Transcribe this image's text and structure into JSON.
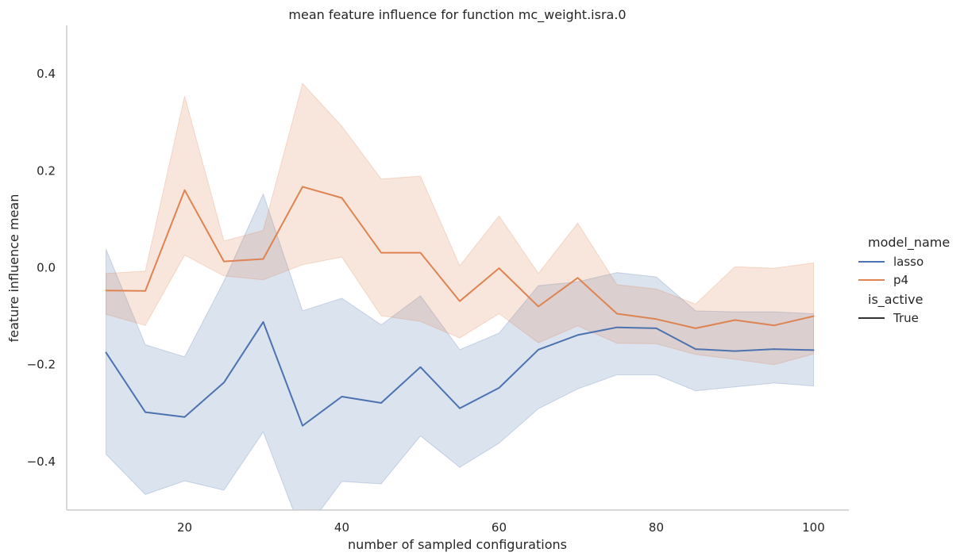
{
  "chart_data": {
    "type": "line",
    "title": "mean feature influence for function mc_weight.isra.0",
    "xlabel": "number of sampled configurations",
    "ylabel": "feature influence mean",
    "xlim": [
      5,
      104.5
    ],
    "ylim": [
      -0.5,
      0.5
    ],
    "xticks": [
      20,
      40,
      60,
      80,
      100
    ],
    "yticks": [
      -0.4,
      -0.2,
      0.0,
      0.2,
      0.4
    ],
    "ytick_labels": [
      "−0.4",
      "−0.2",
      "0.0",
      "0.2",
      "0.4"
    ],
    "grid": false,
    "x": [
      10,
      15,
      20,
      25,
      30,
      35,
      40,
      45,
      50,
      55,
      60,
      65,
      70,
      75,
      80,
      85,
      90,
      95,
      100
    ],
    "series": [
      {
        "name": "lasso",
        "color": "#4c72b0",
        "values": [
          -0.175,
          -0.298,
          -0.308,
          -0.237,
          -0.112,
          -0.326,
          -0.266,
          -0.279,
          -0.205,
          -0.29,
          -0.248,
          -0.169,
          -0.139,
          -0.123,
          -0.125,
          -0.168,
          -0.172,
          -0.168,
          -0.17
        ],
        "ci_upper": [
          0.038,
          -0.159,
          -0.184,
          -0.028,
          0.152,
          -0.089,
          -0.063,
          -0.118,
          -0.058,
          -0.169,
          -0.135,
          -0.037,
          -0.029,
          -0.01,
          -0.019,
          -0.089,
          -0.091,
          -0.091,
          -0.095
        ],
        "ci_lower": [
          -0.385,
          -0.468,
          -0.44,
          -0.459,
          -0.339,
          -0.55,
          -0.441,
          -0.446,
          -0.347,
          -0.412,
          -0.362,
          -0.291,
          -0.25,
          -0.221,
          -0.221,
          -0.254,
          -0.246,
          -0.238,
          -0.244
        ]
      },
      {
        "name": "p4",
        "color": "#dd8452",
        "values": [
          -0.047,
          -0.048,
          0.16,
          0.013,
          0.018,
          0.167,
          0.144,
          0.031,
          0.031,
          -0.069,
          -0.001,
          -0.08,
          -0.021,
          -0.095,
          -0.106,
          -0.125,
          -0.108,
          -0.119,
          -0.1
        ],
        "ci_upper": [
          -0.012,
          -0.007,
          0.354,
          0.055,
          0.077,
          0.38,
          0.292,
          0.183,
          0.189,
          0.004,
          0.107,
          -0.012,
          0.092,
          -0.035,
          -0.044,
          -0.075,
          0.002,
          -0.001,
          0.01
        ],
        "ci_lower": [
          -0.096,
          -0.119,
          0.026,
          -0.017,
          -0.025,
          0.006,
          0.022,
          -0.099,
          -0.111,
          -0.145,
          -0.095,
          -0.155,
          -0.12,
          -0.156,
          -0.157,
          -0.179,
          -0.189,
          -0.2,
          -0.178
        ]
      }
    ],
    "legend": {
      "placement": "right",
      "hue_title": "model_name",
      "style_title": "is_active",
      "style_entries": [
        "True"
      ],
      "style_color": "#333333"
    }
  }
}
